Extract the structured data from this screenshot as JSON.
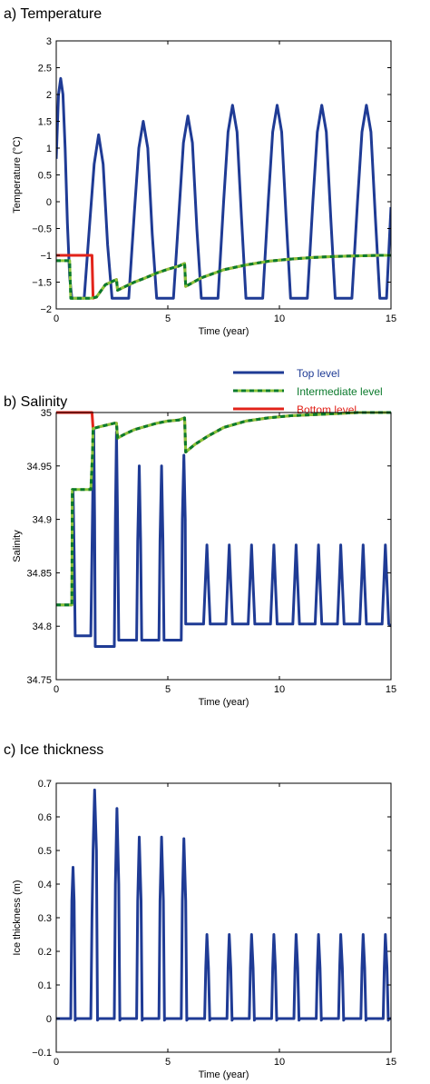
{
  "colors": {
    "top": "#1f3b95",
    "intermediate_dash": "#0b7a2c",
    "intermediate_under": "#8ac43a",
    "bottom": "#e2231a",
    "axis": "#000000"
  },
  "legend": {
    "placement": "between panel a and panel b, right side",
    "entries": [
      {
        "label": "Top level",
        "color": "#1f3b95",
        "style": "solid"
      },
      {
        "label": "Intermediate level",
        "color": "#0b7a2c",
        "style": "dashed"
      },
      {
        "label": "Bottom level",
        "color": "#e2231a",
        "style": "solid"
      }
    ]
  },
  "chart_data": [
    {
      "type": "line",
      "title": "a) Temperature",
      "xlabel": "Time (year)",
      "ylabel": "Temperature (°C)",
      "xlim": [
        0,
        15
      ],
      "ylim": [
        -2,
        3
      ],
      "xticks": [
        0,
        5,
        10,
        15
      ],
      "yticks": [
        -2,
        -1.5,
        -1,
        -0.5,
        0,
        0.5,
        1,
        1.5,
        2,
        2.5,
        3
      ],
      "yticklabels": [
        "−2",
        "−1.5",
        "−1",
        "−0.5",
        "0",
        "0.5",
        "1",
        "1.5",
        "2",
        "2.5",
        "3"
      ],
      "grid": false,
      "series": [
        {
          "name": "Top level",
          "color": "#1f3b95",
          "style": "solid",
          "x": [
            0,
            0.1,
            0.2,
            0.3,
            0.4,
            0.5,
            0.6,
            0.7,
            0.8,
            1.25,
            1.5,
            1.7,
            1.9,
            2.1,
            2.3,
            2.5,
            2.7,
            2.8,
            3.25,
            3.5,
            3.7,
            3.9,
            4.1,
            4.3,
            4.5,
            4.7,
            4.8,
            5.25,
            5.5,
            5.7,
            5.9,
            6.1,
            6.3,
            6.5,
            6.7,
            6.8,
            7.25,
            7.5,
            7.7,
            7.9,
            8.1,
            8.3,
            8.5,
            8.7,
            8.8,
            9.25,
            9.5,
            9.7,
            9.9,
            10.1,
            10.3,
            10.5,
            10.7,
            10.8,
            11.25,
            11.5,
            11.7,
            11.9,
            12.1,
            12.3,
            12.5,
            12.7,
            12.8,
            13.25,
            13.5,
            13.7,
            13.9,
            14.1,
            14.3,
            14.5,
            14.7,
            14.8,
            15
          ],
          "y": [
            0.8,
            2.0,
            2.3,
            2.0,
            1.0,
            -0.4,
            -1.4,
            -1.8,
            -1.8,
            -1.8,
            -0.4,
            0.7,
            1.25,
            0.7,
            -0.8,
            -1.8,
            -1.8,
            -1.8,
            -1.8,
            -0.2,
            1.0,
            1.5,
            1.0,
            -0.6,
            -1.8,
            -1.8,
            -1.8,
            -1.8,
            -0.2,
            1.1,
            1.6,
            1.1,
            -0.5,
            -1.8,
            -1.8,
            -1.8,
            -1.8,
            0.0,
            1.3,
            1.8,
            1.3,
            -0.3,
            -1.8,
            -1.8,
            -1.8,
            -1.8,
            0.0,
            1.3,
            1.8,
            1.3,
            -0.3,
            -1.8,
            -1.8,
            -1.8,
            -1.8,
            0.0,
            1.3,
            1.8,
            1.3,
            -0.3,
            -1.8,
            -1.8,
            -1.8,
            -1.8,
            0.0,
            1.3,
            1.8,
            1.3,
            -0.3,
            -1.8,
            -1.8,
            -1.8,
            -0.1
          ]
        },
        {
          "name": "Intermediate level",
          "color": "#0b7a2c",
          "style": "dashed",
          "x": [
            0,
            0.6,
            0.65,
            1.5,
            1.55,
            1.8,
            2.2,
            2.7,
            2.75,
            3.0,
            3.5,
            4.0,
            4.5,
            5.0,
            5.5,
            5.75,
            5.8,
            6.5,
            7.5,
            8.5,
            9.5,
            10.5,
            11.5,
            12.5,
            13.5,
            14.5,
            15
          ],
          "y": [
            -1.1,
            -1.1,
            -1.8,
            -1.8,
            -1.8,
            -1.78,
            -1.55,
            -1.45,
            -1.65,
            -1.6,
            -1.5,
            -1.42,
            -1.33,
            -1.26,
            -1.2,
            -1.15,
            -1.58,
            -1.42,
            -1.27,
            -1.18,
            -1.11,
            -1.07,
            -1.04,
            -1.02,
            -1.01,
            -1.0,
            -1.0
          ]
        },
        {
          "name": "Bottom level",
          "color": "#e2231a",
          "style": "solid",
          "x": [
            0,
            1.6,
            1.65,
            1.8,
            2.2,
            2.7,
            2.75,
            3.0,
            3.5,
            4.0,
            4.5,
            5.0,
            5.5,
            5.75,
            5.8,
            6.5,
            7.5,
            8.5,
            9.5,
            10.5,
            11.5,
            12.5,
            13.5,
            14.5,
            15
          ],
          "y": [
            -1.0,
            -1.0,
            -1.8,
            -1.78,
            -1.55,
            -1.45,
            -1.65,
            -1.6,
            -1.5,
            -1.42,
            -1.33,
            -1.26,
            -1.2,
            -1.15,
            -1.58,
            -1.42,
            -1.27,
            -1.18,
            -1.11,
            -1.07,
            -1.04,
            -1.02,
            -1.01,
            -1.0,
            -1.0
          ]
        }
      ]
    },
    {
      "type": "line",
      "title": "b) Salinity",
      "xlabel": "Time (year)",
      "ylabel": "Salinity",
      "xlim": [
        0,
        15
      ],
      "ylim": [
        34.75,
        35
      ],
      "xticks": [
        0,
        5,
        10,
        15
      ],
      "yticks": [
        34.75,
        34.8,
        34.85,
        34.9,
        34.95,
        35
      ],
      "yticklabels": [
        "34.75",
        "34.8",
        "34.85",
        "34.9",
        "34.95",
        "35"
      ],
      "grid": false,
      "series": [
        {
          "name": "Top level",
          "color": "#1f3b95",
          "style": "solid",
          "x": [
            0,
            0.7,
            0.72,
            0.75,
            0.8,
            0.85,
            0.88,
            1.5,
            1.55,
            1.62,
            1.68,
            1.72,
            1.75,
            1.78,
            1.9,
            2.6,
            2.65,
            2.7,
            2.75,
            2.8,
            2.85,
            2.9,
            3.6,
            3.65,
            3.72,
            3.78,
            3.83,
            3.88,
            4.6,
            4.65,
            4.72,
            4.78,
            4.83,
            4.88,
            5.6,
            5.65,
            5.72,
            5.78,
            5.8,
            6.6,
            6.68,
            6.75,
            6.82,
            6.9,
            7.6,
            7.68,
            7.75,
            7.82,
            7.9,
            8.6,
            8.68,
            8.75,
            8.82,
            8.9,
            9.6,
            9.68,
            9.75,
            9.82,
            9.9,
            10.6,
            10.68,
            10.75,
            10.82,
            10.9,
            11.6,
            11.68,
            11.75,
            11.82,
            11.9,
            12.6,
            12.68,
            12.75,
            12.82,
            12.9,
            13.6,
            13.68,
            13.75,
            13.82,
            13.9,
            14.6,
            14.68,
            14.75,
            14.82,
            14.9,
            15
          ],
          "y": [
            34.82,
            34.82,
            34.87,
            34.928,
            34.87,
            34.791,
            34.791,
            34.791,
            34.791,
            34.9,
            34.985,
            34.9,
            34.781,
            34.781,
            34.781,
            34.781,
            34.9,
            34.982,
            34.9,
            34.787,
            34.787,
            34.787,
            34.787,
            34.88,
            34.95,
            34.88,
            34.787,
            34.787,
            34.787,
            34.88,
            34.95,
            34.88,
            34.787,
            34.787,
            34.787,
            34.9,
            34.96,
            34.9,
            34.802,
            34.802,
            34.84,
            34.876,
            34.84,
            34.802,
            34.802,
            34.84,
            34.876,
            34.84,
            34.802,
            34.802,
            34.84,
            34.876,
            34.84,
            34.802,
            34.802,
            34.84,
            34.876,
            34.84,
            34.802,
            34.802,
            34.84,
            34.876,
            34.84,
            34.802,
            34.802,
            34.84,
            34.876,
            34.84,
            34.802,
            34.802,
            34.84,
            34.876,
            34.84,
            34.802,
            34.802,
            34.84,
            34.876,
            34.84,
            34.802,
            34.802,
            34.84,
            34.876,
            34.84,
            34.802,
            34.8
          ]
        },
        {
          "name": "Intermediate level",
          "color": "#0b7a2c",
          "style": "dashed",
          "x": [
            0,
            0.7,
            0.72,
            1.5,
            1.55,
            1.62,
            1.65,
            2.0,
            2.6,
            2.7,
            2.75,
            3.0,
            3.5,
            4.0,
            4.5,
            5.0,
            5.5,
            5.75,
            5.8,
            6.2,
            6.8,
            7.5,
            8.5,
            9.5,
            10.5,
            11.5,
            12.5,
            13.5,
            14.5,
            15
          ],
          "y": [
            34.82,
            34.82,
            34.928,
            34.928,
            34.928,
            34.96,
            34.985,
            34.987,
            34.99,
            34.99,
            34.976,
            34.979,
            34.984,
            34.987,
            34.99,
            34.992,
            34.993,
            34.995,
            34.963,
            34.97,
            34.978,
            34.986,
            34.992,
            34.995,
            34.997,
            34.998,
            34.999,
            35.0,
            35.0,
            35.0
          ]
        },
        {
          "name": "Bottom level",
          "color": "#e2231a",
          "style": "solid",
          "x": [
            0,
            1.6,
            1.65,
            2.0,
            2.6,
            2.7,
            2.75,
            3.0,
            3.5,
            4.0,
            4.5,
            5.0,
            5.5,
            5.75,
            5.8,
            6.2,
            6.8,
            7.5,
            8.5,
            9.5,
            10.5,
            11.5,
            12.5,
            13.5,
            14.5,
            15
          ],
          "y": [
            35.0,
            35.0,
            34.985,
            34.987,
            34.99,
            34.99,
            34.976,
            34.979,
            34.984,
            34.987,
            34.99,
            34.992,
            34.993,
            34.995,
            34.963,
            34.97,
            34.978,
            34.986,
            34.992,
            34.995,
            34.997,
            34.998,
            34.999,
            35.0,
            35.0,
            35.0
          ]
        }
      ]
    },
    {
      "type": "line",
      "title": "c) Ice thickness",
      "xlabel": "Time (year)",
      "ylabel": "Ice thickness (m)",
      "xlim": [
        0,
        15
      ],
      "ylim": [
        -0.1,
        0.7
      ],
      "xticks": [
        0,
        5,
        10,
        15
      ],
      "yticks": [
        -0.1,
        0,
        0.1,
        0.2,
        0.3,
        0.4,
        0.5,
        0.6,
        0.7
      ],
      "yticklabels": [
        "−0.1",
        "0",
        "0.1",
        "0.2",
        "0.3",
        "0.4",
        "0.5",
        "0.6",
        "0.7"
      ],
      "grid": false,
      "series": [
        {
          "name": "Top level",
          "color": "#1f3b95",
          "style": "solid",
          "x": [
            0,
            0.65,
            0.7,
            0.75,
            0.8,
            0.85,
            0.9,
            1.55,
            1.6,
            1.65,
            1.72,
            1.8,
            1.85,
            1.9,
            2.6,
            2.65,
            2.72,
            2.8,
            2.85,
            2.9,
            3.6,
            3.65,
            3.72,
            3.8,
            3.85,
            3.9,
            4.6,
            4.65,
            4.72,
            4.8,
            4.85,
            4.9,
            5.6,
            5.65,
            5.72,
            5.8,
            5.85,
            5.9,
            6.65,
            6.7,
            6.75,
            6.82,
            6.88,
            6.92,
            7.65,
            7.7,
            7.75,
            7.82,
            7.88,
            7.92,
            8.65,
            8.7,
            8.75,
            8.82,
            8.88,
            8.92,
            9.65,
            9.7,
            9.75,
            9.82,
            9.88,
            9.92,
            10.65,
            10.7,
            10.75,
            10.82,
            10.88,
            10.92,
            11.65,
            11.7,
            11.75,
            11.82,
            11.88,
            11.92,
            12.65,
            12.7,
            12.75,
            12.82,
            12.88,
            12.92,
            13.65,
            13.7,
            13.75,
            13.82,
            13.88,
            13.92,
            14.65,
            14.7,
            14.75,
            14.82,
            14.88,
            14.92,
            15
          ],
          "y": [
            0,
            0,
            0.35,
            0.45,
            0.35,
            -0.005,
            0,
            0,
            0.3,
            0.5,
            0.68,
            0.5,
            -0.005,
            0,
            0,
            0.4,
            0.625,
            0.4,
            -0.005,
            0,
            0,
            0.35,
            0.54,
            0.35,
            -0.005,
            0,
            0,
            0.35,
            0.54,
            0.35,
            -0.005,
            0,
            0,
            0.35,
            0.535,
            0.35,
            -0.005,
            0,
            0,
            0.15,
            0.25,
            0.15,
            -0.005,
            0,
            0,
            0.15,
            0.25,
            0.15,
            -0.005,
            0,
            0,
            0.15,
            0.25,
            0.15,
            -0.005,
            0,
            0,
            0.15,
            0.25,
            0.15,
            -0.005,
            0,
            0,
            0.15,
            0.25,
            0.15,
            -0.005,
            0,
            0,
            0.15,
            0.25,
            0.15,
            -0.005,
            0,
            0,
            0.15,
            0.25,
            0.15,
            -0.005,
            0,
            0,
            0.15,
            0.25,
            0.15,
            -0.005,
            0,
            0,
            0.15,
            0.25,
            0.15,
            -0.005,
            0,
            0
          ]
        }
      ]
    }
  ]
}
